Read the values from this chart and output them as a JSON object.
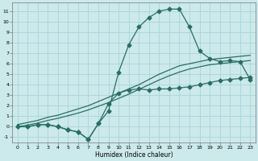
{
  "xlabel": "Humidex (Indice chaleur)",
  "xlim": [
    -0.5,
    23.5
  ],
  "ylim": [
    -1.5,
    11.8
  ],
  "xticks": [
    0,
    1,
    2,
    3,
    4,
    5,
    6,
    7,
    8,
    9,
    10,
    11,
    12,
    13,
    14,
    15,
    16,
    17,
    18,
    19,
    20,
    21,
    22,
    23
  ],
  "yticks": [
    -1,
    0,
    1,
    2,
    3,
    4,
    5,
    6,
    7,
    8,
    9,
    10,
    11
  ],
  "bg_color": "#cce9ec",
  "grid_color": "#aad4d8",
  "line_color": "#2a6e63",
  "curve1_x": [
    0,
    1,
    2,
    3,
    4,
    5,
    6,
    7,
    8,
    9,
    10,
    11,
    12,
    13,
    14,
    15,
    16,
    17,
    18,
    19,
    20,
    21,
    22,
    23
  ],
  "curve1_y": [
    0,
    0,
    0.2,
    0.2,
    0.0,
    -0.3,
    -0.5,
    -1.2,
    0.3,
    1.5,
    5.2,
    7.8,
    9.5,
    10.4,
    11.0,
    11.2,
    11.2,
    9.5,
    7.2,
    6.5,
    6.2,
    6.3,
    6.2,
    4.5
  ],
  "curve2_x": [
    0,
    1,
    2,
    3,
    4,
    5,
    6,
    7,
    8,
    9,
    10,
    11,
    12,
    13,
    14,
    15,
    16,
    17,
    18,
    19,
    20,
    21,
    22,
    23
  ],
  "curve2_y": [
    0.2,
    0.4,
    0.6,
    0.9,
    1.1,
    1.4,
    1.7,
    2.0,
    2.4,
    2.8,
    3.2,
    3.6,
    4.0,
    4.5,
    5.0,
    5.4,
    5.8,
    6.0,
    6.2,
    6.4,
    6.5,
    6.6,
    6.7,
    6.8
  ],
  "curve3_x": [
    0,
    1,
    2,
    3,
    4,
    5,
    6,
    7,
    8,
    9,
    10,
    11,
    12,
    13,
    14,
    15,
    16,
    17,
    18,
    19,
    20,
    21,
    22,
    23
  ],
  "curve3_y": [
    0.0,
    0.15,
    0.35,
    0.6,
    0.8,
    1.05,
    1.3,
    1.6,
    1.95,
    2.3,
    2.7,
    3.1,
    3.55,
    4.0,
    4.45,
    4.85,
    5.2,
    5.5,
    5.7,
    5.9,
    6.0,
    6.1,
    6.2,
    6.3
  ],
  "curve4_x": [
    0,
    1,
    2,
    3,
    4,
    5,
    6,
    7,
    8,
    9,
    10,
    11,
    12,
    13,
    14,
    15,
    16,
    17,
    18,
    19,
    20,
    21,
    22,
    23
  ],
  "curve4_y": [
    0,
    0,
    0.2,
    0.2,
    0.0,
    -0.3,
    -0.5,
    -1.2,
    0.3,
    2.2,
    3.2,
    3.5,
    3.6,
    3.5,
    3.6,
    3.6,
    3.7,
    3.8,
    4.0,
    4.2,
    4.4,
    4.5,
    4.6,
    4.7
  ]
}
